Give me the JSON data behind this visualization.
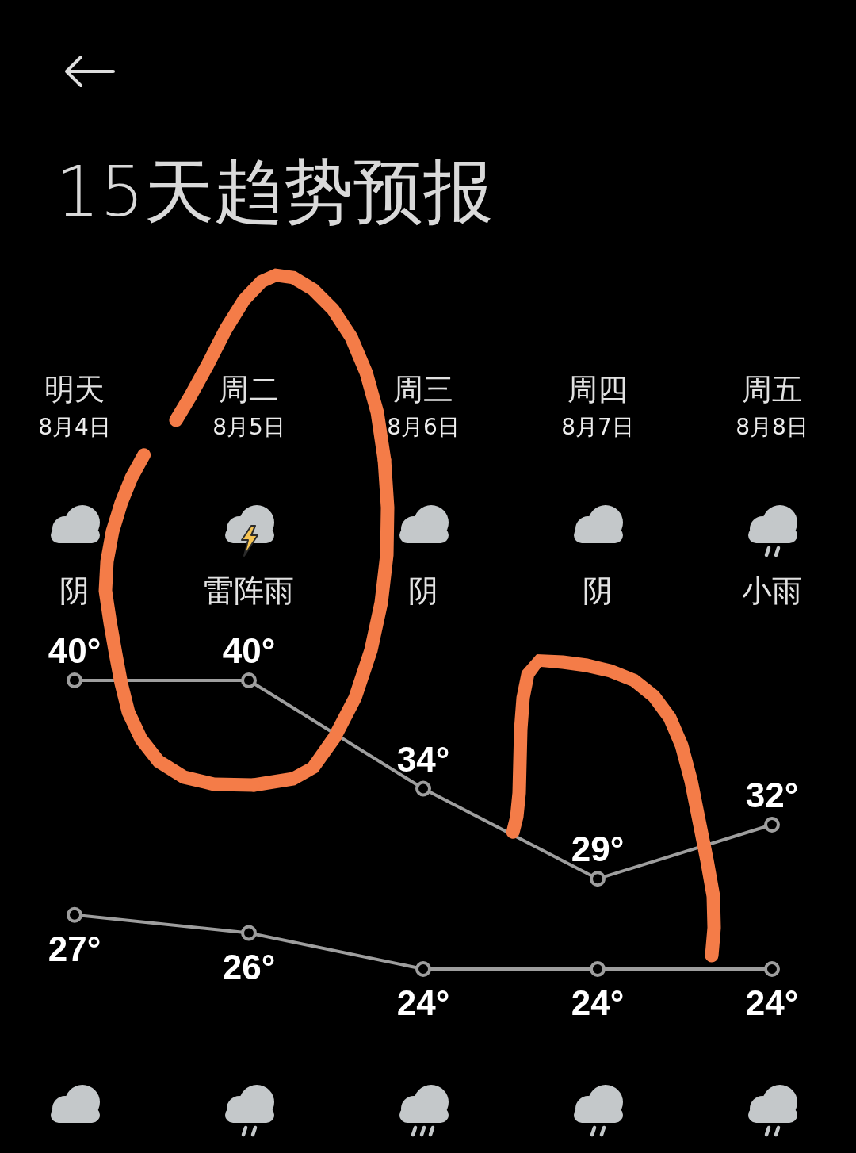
{
  "chart_data": {
    "type": "line",
    "title": "15天趋势预报",
    "categories": [
      "明天\n8月4日",
      "周二\n8月5日",
      "周三\n8月6日",
      "周四\n8月7日",
      "周五\n8月8日"
    ],
    "series": [
      {
        "color": "#9e9e9e",
        "values": [
          40,
          40,
          34,
          29,
          32
        ],
        "value_labels": [
          "40°",
          "40°",
          "34°",
          "29°",
          "32°"
        ]
      },
      {
        "color": "#9e9e9e",
        "values": [
          27,
          26,
          24,
          24,
          24
        ],
        "value_labels": [
          "27°",
          "26°",
          "24°",
          "24°",
          "24°"
        ]
      }
    ],
    "annotations": [
      "阴",
      "雷阵雨",
      "阴",
      "阴",
      "小雨"
    ],
    "marker": "circle",
    "line_style": "solid",
    "tick_labels": "x"
  }
}
